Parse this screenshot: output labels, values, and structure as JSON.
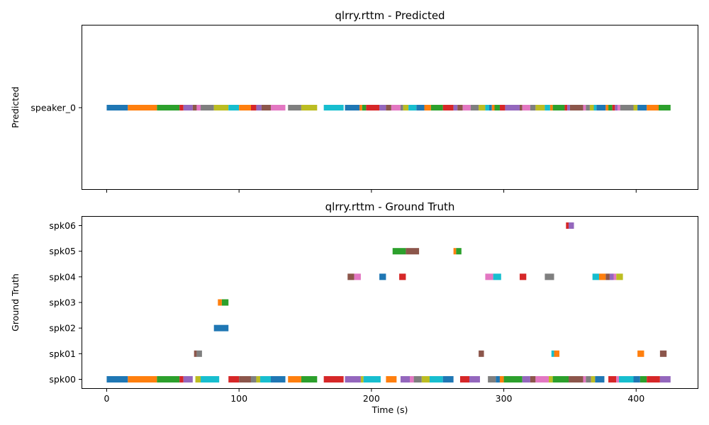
{
  "palette": [
    "#1f77b4",
    "#ff7f0e",
    "#2ca02c",
    "#d62728",
    "#9467bd",
    "#8c564b",
    "#e377c2",
    "#7f7f7f",
    "#bcbd22",
    "#17becf"
  ],
  "chart_data": [
    {
      "type": "timeline",
      "title": "qlrry.rttm - Predicted",
      "xlabel": "",
      "ylabel": "Predicted",
      "xlim": [
        -19,
        447
      ],
      "xticks": [
        0,
        100,
        200,
        300,
        400
      ],
      "show_xtick_labels": false,
      "speakers": [
        "speaker_0"
      ],
      "segments": [
        {
          "speaker": "speaker_0",
          "start": 0,
          "end": 16,
          "color": "#1f77b4"
        },
        {
          "speaker": "speaker_0",
          "start": 16,
          "end": 38,
          "color": "#ff7f0e"
        },
        {
          "speaker": "speaker_0",
          "start": 38,
          "end": 55,
          "color": "#2ca02c"
        },
        {
          "speaker": "speaker_0",
          "start": 55,
          "end": 58,
          "color": "#d62728"
        },
        {
          "speaker": "speaker_0",
          "start": 58,
          "end": 65,
          "color": "#9467bd"
        },
        {
          "speaker": "speaker_0",
          "start": 65,
          "end": 68,
          "color": "#8c564b"
        },
        {
          "speaker": "speaker_0",
          "start": 68,
          "end": 71,
          "color": "#e377c2"
        },
        {
          "speaker": "speaker_0",
          "start": 71,
          "end": 81,
          "color": "#7f7f7f"
        },
        {
          "speaker": "speaker_0",
          "start": 81,
          "end": 92,
          "color": "#bcbd22"
        },
        {
          "speaker": "speaker_0",
          "start": 92,
          "end": 100,
          "color": "#17becf"
        },
        {
          "speaker": "speaker_0",
          "start": 100,
          "end": 109,
          "color": "#ff7f0e"
        },
        {
          "speaker": "speaker_0",
          "start": 109,
          "end": 113,
          "color": "#d62728"
        },
        {
          "speaker": "speaker_0",
          "start": 113,
          "end": 117,
          "color": "#9467bd"
        },
        {
          "speaker": "speaker_0",
          "start": 117,
          "end": 124,
          "color": "#8c564b"
        },
        {
          "speaker": "speaker_0",
          "start": 124,
          "end": 135,
          "color": "#e377c2"
        },
        {
          "speaker": "speaker_0",
          "start": 137,
          "end": 147,
          "color": "#7f7f7f"
        },
        {
          "speaker": "speaker_0",
          "start": 147,
          "end": 159,
          "color": "#bcbd22"
        },
        {
          "speaker": "speaker_0",
          "start": 164,
          "end": 179,
          "color": "#17becf"
        },
        {
          "speaker": "speaker_0",
          "start": 180,
          "end": 191,
          "color": "#1f77b4"
        },
        {
          "speaker": "speaker_0",
          "start": 191,
          "end": 193,
          "color": "#ff7f0e"
        },
        {
          "speaker": "speaker_0",
          "start": 193,
          "end": 196,
          "color": "#2ca02c"
        },
        {
          "speaker": "speaker_0",
          "start": 196,
          "end": 206,
          "color": "#d62728"
        },
        {
          "speaker": "speaker_0",
          "start": 206,
          "end": 211,
          "color": "#9467bd"
        },
        {
          "speaker": "speaker_0",
          "start": 211,
          "end": 215,
          "color": "#8c564b"
        },
        {
          "speaker": "speaker_0",
          "start": 215,
          "end": 222,
          "color": "#e377c2"
        },
        {
          "speaker": "speaker_0",
          "start": 222,
          "end": 224,
          "color": "#7f7f7f"
        },
        {
          "speaker": "speaker_0",
          "start": 224,
          "end": 228,
          "color": "#bcbd22"
        },
        {
          "speaker": "speaker_0",
          "start": 228,
          "end": 234,
          "color": "#17becf"
        },
        {
          "speaker": "speaker_0",
          "start": 234,
          "end": 240,
          "color": "#1f77b4"
        },
        {
          "speaker": "speaker_0",
          "start": 240,
          "end": 245,
          "color": "#ff7f0e"
        },
        {
          "speaker": "speaker_0",
          "start": 245,
          "end": 254,
          "color": "#2ca02c"
        },
        {
          "speaker": "speaker_0",
          "start": 254,
          "end": 262,
          "color": "#d62728"
        },
        {
          "speaker": "speaker_0",
          "start": 262,
          "end": 265,
          "color": "#9467bd"
        },
        {
          "speaker": "speaker_0",
          "start": 265,
          "end": 269,
          "color": "#8c564b"
        },
        {
          "speaker": "speaker_0",
          "start": 269,
          "end": 275,
          "color": "#e377c2"
        },
        {
          "speaker": "speaker_0",
          "start": 275,
          "end": 281,
          "color": "#7f7f7f"
        },
        {
          "speaker": "speaker_0",
          "start": 281,
          "end": 286,
          "color": "#bcbd22"
        },
        {
          "speaker": "speaker_0",
          "start": 286,
          "end": 289,
          "color": "#17becf"
        },
        {
          "speaker": "speaker_0",
          "start": 289,
          "end": 291,
          "color": "#1f77b4"
        },
        {
          "speaker": "speaker_0",
          "start": 291,
          "end": 293,
          "color": "#ff7f0e"
        },
        {
          "speaker": "speaker_0",
          "start": 293,
          "end": 297,
          "color": "#2ca02c"
        },
        {
          "speaker": "speaker_0",
          "start": 297,
          "end": 301,
          "color": "#d62728"
        },
        {
          "speaker": "speaker_0",
          "start": 301,
          "end": 312,
          "color": "#9467bd"
        },
        {
          "speaker": "speaker_0",
          "start": 312,
          "end": 314,
          "color": "#8c564b"
        },
        {
          "speaker": "speaker_0",
          "start": 314,
          "end": 320,
          "color": "#e377c2"
        },
        {
          "speaker": "speaker_0",
          "start": 320,
          "end": 324,
          "color": "#7f7f7f"
        },
        {
          "speaker": "speaker_0",
          "start": 324,
          "end": 331,
          "color": "#bcbd22"
        },
        {
          "speaker": "speaker_0",
          "start": 331,
          "end": 335,
          "color": "#17becf"
        },
        {
          "speaker": "speaker_0",
          "start": 335,
          "end": 337,
          "color": "#ff7f0e"
        },
        {
          "speaker": "speaker_0",
          "start": 337,
          "end": 346,
          "color": "#2ca02c"
        },
        {
          "speaker": "speaker_0",
          "start": 346,
          "end": 348,
          "color": "#d62728"
        },
        {
          "speaker": "speaker_0",
          "start": 348,
          "end": 350,
          "color": "#9467bd"
        },
        {
          "speaker": "speaker_0",
          "start": 350,
          "end": 360,
          "color": "#8c564b"
        },
        {
          "speaker": "speaker_0",
          "start": 360,
          "end": 362,
          "color": "#e377c2"
        },
        {
          "speaker": "speaker_0",
          "start": 362,
          "end": 365,
          "color": "#7f7f7f"
        },
        {
          "speaker": "speaker_0",
          "start": 365,
          "end": 368,
          "color": "#bcbd22"
        },
        {
          "speaker": "speaker_0",
          "start": 368,
          "end": 370,
          "color": "#17becf"
        },
        {
          "speaker": "speaker_0",
          "start": 370,
          "end": 377,
          "color": "#1f77b4"
        },
        {
          "speaker": "speaker_0",
          "start": 377,
          "end": 379,
          "color": "#ff7f0e"
        },
        {
          "speaker": "speaker_0",
          "start": 379,
          "end": 382,
          "color": "#2ca02c"
        },
        {
          "speaker": "speaker_0",
          "start": 382,
          "end": 384,
          "color": "#d62728"
        },
        {
          "speaker": "speaker_0",
          "start": 384,
          "end": 386,
          "color": "#9467bd"
        },
        {
          "speaker": "speaker_0",
          "start": 386,
          "end": 388,
          "color": "#e377c2"
        },
        {
          "speaker": "speaker_0",
          "start": 388,
          "end": 398,
          "color": "#7f7f7f"
        },
        {
          "speaker": "speaker_0",
          "start": 398,
          "end": 401,
          "color": "#bcbd22"
        },
        {
          "speaker": "speaker_0",
          "start": 401,
          "end": 408,
          "color": "#1f77b4"
        },
        {
          "speaker": "speaker_0",
          "start": 408,
          "end": 417,
          "color": "#ff7f0e"
        },
        {
          "speaker": "speaker_0",
          "start": 417,
          "end": 426,
          "color": "#2ca02c"
        }
      ]
    },
    {
      "type": "timeline",
      "title": "qlrry.rttm - Ground Truth",
      "xlabel": "Time (s)",
      "ylabel": "Ground Truth",
      "xlim": [
        -19,
        447
      ],
      "xticks": [
        0,
        100,
        200,
        300,
        400
      ],
      "show_xtick_labels": true,
      "speakers": [
        "spk00",
        "spk01",
        "spk02",
        "spk03",
        "spk04",
        "spk05",
        "spk06"
      ],
      "segments": [
        {
          "speaker": "spk00",
          "start": 0,
          "end": 16,
          "color": "#1f77b4"
        },
        {
          "speaker": "spk00",
          "start": 16,
          "end": 38,
          "color": "#ff7f0e"
        },
        {
          "speaker": "spk00",
          "start": 38,
          "end": 55,
          "color": "#2ca02c"
        },
        {
          "speaker": "spk00",
          "start": 55,
          "end": 58,
          "color": "#d62728"
        },
        {
          "speaker": "spk00",
          "start": 58,
          "end": 65,
          "color": "#9467bd"
        },
        {
          "speaker": "spk00",
          "start": 67,
          "end": 71,
          "color": "#bcbd22"
        },
        {
          "speaker": "spk00",
          "start": 71,
          "end": 85,
          "color": "#17becf"
        },
        {
          "speaker": "spk00",
          "start": 92,
          "end": 100,
          "color": "#d62728"
        },
        {
          "speaker": "spk00",
          "start": 100,
          "end": 109,
          "color": "#8c564b"
        },
        {
          "speaker": "spk00",
          "start": 109,
          "end": 113,
          "color": "#7f7f7f"
        },
        {
          "speaker": "spk00",
          "start": 113,
          "end": 116,
          "color": "#bcbd22"
        },
        {
          "speaker": "spk00",
          "start": 116,
          "end": 124,
          "color": "#17becf"
        },
        {
          "speaker": "spk00",
          "start": 124,
          "end": 135,
          "color": "#1f77b4"
        },
        {
          "speaker": "spk00",
          "start": 137,
          "end": 147,
          "color": "#ff7f0e"
        },
        {
          "speaker": "spk00",
          "start": 147,
          "end": 159,
          "color": "#2ca02c"
        },
        {
          "speaker": "spk00",
          "start": 164,
          "end": 179,
          "color": "#d62728"
        },
        {
          "speaker": "spk00",
          "start": 180,
          "end": 192,
          "color": "#9467bd"
        },
        {
          "speaker": "spk00",
          "start": 192,
          "end": 194,
          "color": "#bcbd22"
        },
        {
          "speaker": "spk00",
          "start": 194,
          "end": 207,
          "color": "#17becf"
        },
        {
          "speaker": "spk00",
          "start": 211,
          "end": 219,
          "color": "#ff7f0e"
        },
        {
          "speaker": "spk00",
          "start": 222,
          "end": 229,
          "color": "#9467bd"
        },
        {
          "speaker": "spk00",
          "start": 229,
          "end": 232,
          "color": "#e377c2"
        },
        {
          "speaker": "spk00",
          "start": 232,
          "end": 238,
          "color": "#7f7f7f"
        },
        {
          "speaker": "spk00",
          "start": 238,
          "end": 244,
          "color": "#bcbd22"
        },
        {
          "speaker": "spk00",
          "start": 244,
          "end": 254,
          "color": "#17becf"
        },
        {
          "speaker": "spk00",
          "start": 254,
          "end": 262,
          "color": "#1f77b4"
        },
        {
          "speaker": "spk00",
          "start": 267,
          "end": 274,
          "color": "#d62728"
        },
        {
          "speaker": "spk00",
          "start": 274,
          "end": 282,
          "color": "#9467bd"
        },
        {
          "speaker": "spk00",
          "start": 288,
          "end": 294,
          "color": "#7f7f7f"
        },
        {
          "speaker": "spk00",
          "start": 294,
          "end": 297,
          "color": "#1f77b4"
        },
        {
          "speaker": "spk00",
          "start": 297,
          "end": 300,
          "color": "#ff7f0e"
        },
        {
          "speaker": "spk00",
          "start": 300,
          "end": 314,
          "color": "#2ca02c"
        },
        {
          "speaker": "spk00",
          "start": 314,
          "end": 320,
          "color": "#9467bd"
        },
        {
          "speaker": "spk00",
          "start": 320,
          "end": 324,
          "color": "#8c564b"
        },
        {
          "speaker": "spk00",
          "start": 324,
          "end": 334,
          "color": "#e377c2"
        },
        {
          "speaker": "spk00",
          "start": 334,
          "end": 337,
          "color": "#bcbd22"
        },
        {
          "speaker": "spk00",
          "start": 337,
          "end": 349,
          "color": "#2ca02c"
        },
        {
          "speaker": "spk00",
          "start": 349,
          "end": 360,
          "color": "#8c564b"
        },
        {
          "speaker": "spk00",
          "start": 360,
          "end": 362,
          "color": "#e377c2"
        },
        {
          "speaker": "spk00",
          "start": 362,
          "end": 366,
          "color": "#7f7f7f"
        },
        {
          "speaker": "spk00",
          "start": 366,
          "end": 369,
          "color": "#bcbd22"
        },
        {
          "speaker": "spk00",
          "start": 369,
          "end": 376,
          "color": "#1f77b4"
        },
        {
          "speaker": "spk00",
          "start": 379,
          "end": 385,
          "color": "#d62728"
        },
        {
          "speaker": "spk00",
          "start": 385,
          "end": 387,
          "color": "#e377c2"
        },
        {
          "speaker": "spk00",
          "start": 387,
          "end": 398,
          "color": "#17becf"
        },
        {
          "speaker": "spk00",
          "start": 398,
          "end": 403,
          "color": "#1f77b4"
        },
        {
          "speaker": "spk00",
          "start": 403,
          "end": 408,
          "color": "#2ca02c"
        },
        {
          "speaker": "spk00",
          "start": 408,
          "end": 418,
          "color": "#d62728"
        },
        {
          "speaker": "spk00",
          "start": 418,
          "end": 426,
          "color": "#9467bd"
        },
        {
          "speaker": "spk01",
          "start": 66,
          "end": 68,
          "color": "#8c564b"
        },
        {
          "speaker": "spk01",
          "start": 68,
          "end": 72,
          "color": "#7f7f7f"
        },
        {
          "speaker": "spk01",
          "start": 281,
          "end": 285,
          "color": "#8c564b"
        },
        {
          "speaker": "spk01",
          "start": 336,
          "end": 338,
          "color": "#17becf"
        },
        {
          "speaker": "spk01",
          "start": 338,
          "end": 342,
          "color": "#ff7f0e"
        },
        {
          "speaker": "spk01",
          "start": 401,
          "end": 406,
          "color": "#ff7f0e"
        },
        {
          "speaker": "spk01",
          "start": 418,
          "end": 423,
          "color": "#8c564b"
        },
        {
          "speaker": "spk02",
          "start": 81,
          "end": 92,
          "color": "#1f77b4"
        },
        {
          "speaker": "spk03",
          "start": 84,
          "end": 87,
          "color": "#ff7f0e"
        },
        {
          "speaker": "spk03",
          "start": 87,
          "end": 92,
          "color": "#2ca02c"
        },
        {
          "speaker": "spk04",
          "start": 182,
          "end": 187,
          "color": "#8c564b"
        },
        {
          "speaker": "spk04",
          "start": 187,
          "end": 192,
          "color": "#e377c2"
        },
        {
          "speaker": "spk04",
          "start": 206,
          "end": 211,
          "color": "#1f77b4"
        },
        {
          "speaker": "spk04",
          "start": 221,
          "end": 226,
          "color": "#d62728"
        },
        {
          "speaker": "spk04",
          "start": 286,
          "end": 292,
          "color": "#e377c2"
        },
        {
          "speaker": "spk04",
          "start": 292,
          "end": 298,
          "color": "#17becf"
        },
        {
          "speaker": "spk04",
          "start": 312,
          "end": 317,
          "color": "#d62728"
        },
        {
          "speaker": "spk04",
          "start": 331,
          "end": 338,
          "color": "#7f7f7f"
        },
        {
          "speaker": "spk04",
          "start": 367,
          "end": 372,
          "color": "#17becf"
        },
        {
          "speaker": "spk04",
          "start": 372,
          "end": 377,
          "color": "#ff7f0e"
        },
        {
          "speaker": "spk04",
          "start": 377,
          "end": 380,
          "color": "#8c564b"
        },
        {
          "speaker": "spk04",
          "start": 380,
          "end": 383,
          "color": "#9467bd"
        },
        {
          "speaker": "spk04",
          "start": 383,
          "end": 385,
          "color": "#e377c2"
        },
        {
          "speaker": "spk04",
          "start": 385,
          "end": 390,
          "color": "#bcbd22"
        },
        {
          "speaker": "spk05",
          "start": 216,
          "end": 226,
          "color": "#2ca02c"
        },
        {
          "speaker": "spk05",
          "start": 226,
          "end": 236,
          "color": "#8c564b"
        },
        {
          "speaker": "spk05",
          "start": 262,
          "end": 264,
          "color": "#ff7f0e"
        },
        {
          "speaker": "spk05",
          "start": 264,
          "end": 268,
          "color": "#2ca02c"
        },
        {
          "speaker": "spk06",
          "start": 347,
          "end": 349,
          "color": "#d62728"
        },
        {
          "speaker": "spk06",
          "start": 349,
          "end": 353,
          "color": "#9467bd"
        }
      ]
    }
  ]
}
